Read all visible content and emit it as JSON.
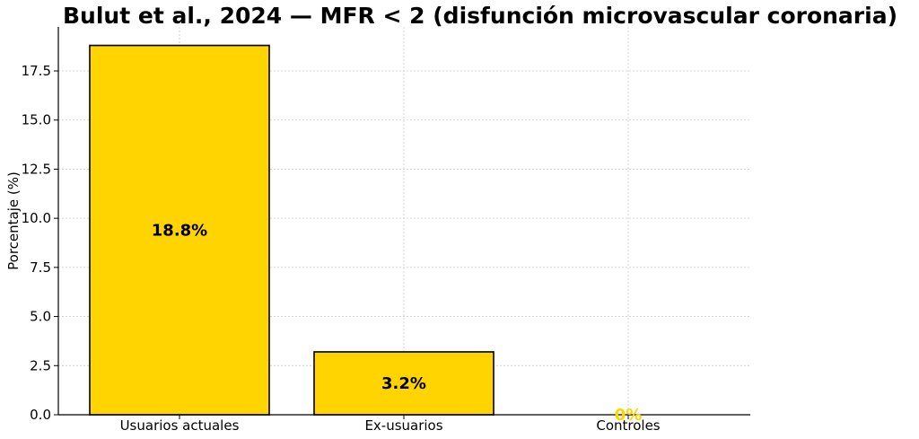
{
  "chart_data": {
    "type": "bar",
    "title": "Bulut et al., 2024 — MFR < 2 (disfunción microvascular coronaria)",
    "xlabel": "",
    "ylabel": "Porcentaje (%)",
    "categories": [
      "Usuarios actuales",
      "Ex-usuarios",
      "Controles"
    ],
    "values": [
      18.8,
      3.2,
      0
    ],
    "data_labels": [
      "18.8%",
      "3.2%",
      "0%"
    ],
    "data_label_colors": [
      "#000000",
      "#000000",
      "#FFD400"
    ],
    "ylim": [
      0,
      19.74
    ],
    "yticks": [
      0.0,
      2.5,
      5.0,
      7.5,
      10.0,
      12.5,
      15.0,
      17.5
    ],
    "ytick_labels": [
      "0.0",
      "2.5",
      "5.0",
      "7.5",
      "10.0",
      "12.5",
      "15.0",
      "17.5"
    ],
    "grid": true,
    "bar_color": "#FFD400",
    "bar_edge_color": "#000000"
  }
}
